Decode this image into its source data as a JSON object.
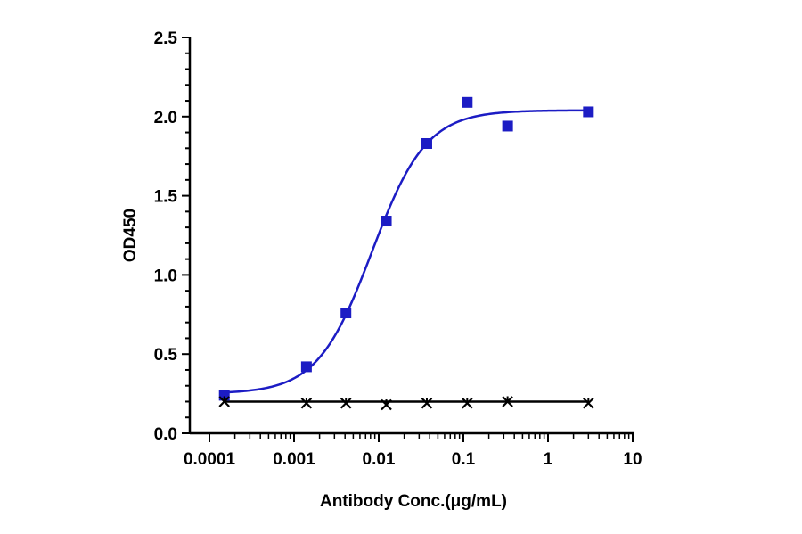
{
  "chart_data": {
    "type": "scatter",
    "title": "",
    "xlabel": "Antibody Conc.(μg/mL)",
    "ylabel": "OD450",
    "xscale": "log",
    "xlim": [
      0.0001,
      10
    ],
    "ylim": [
      0,
      2.5
    ],
    "x_ticks": [
      "0.0001",
      "0.001",
      "0.01",
      "0.1",
      "1",
      "10"
    ],
    "y_ticks": [
      "0.0",
      "0.5",
      "1.0",
      "1.5",
      "2.0",
      "2.5"
    ],
    "grid": false,
    "legend": "none",
    "series": [
      {
        "marker": "square",
        "color": "#1c1cc4",
        "x": [
          0.00015,
          0.0014,
          0.0041,
          0.0123,
          0.037,
          0.111,
          0.333,
          3.0
        ],
        "y": [
          0.24,
          0.42,
          0.76,
          1.34,
          1.83,
          2.09,
          1.94,
          2.03
        ],
        "fit": {
          "model": "4PL",
          "bottom": 0.25,
          "top": 2.04,
          "ec50": 0.0083,
          "hill": 1.35
        }
      },
      {
        "marker": "cross",
        "color": "#000000",
        "x": [
          0.00015,
          0.0014,
          0.0041,
          0.0123,
          0.037,
          0.111,
          0.333,
          3.0
        ],
        "y": [
          0.2,
          0.19,
          0.19,
          0.18,
          0.19,
          0.19,
          0.2,
          0.19
        ],
        "fit": {
          "model": "flat",
          "value": 0.2
        }
      }
    ]
  }
}
